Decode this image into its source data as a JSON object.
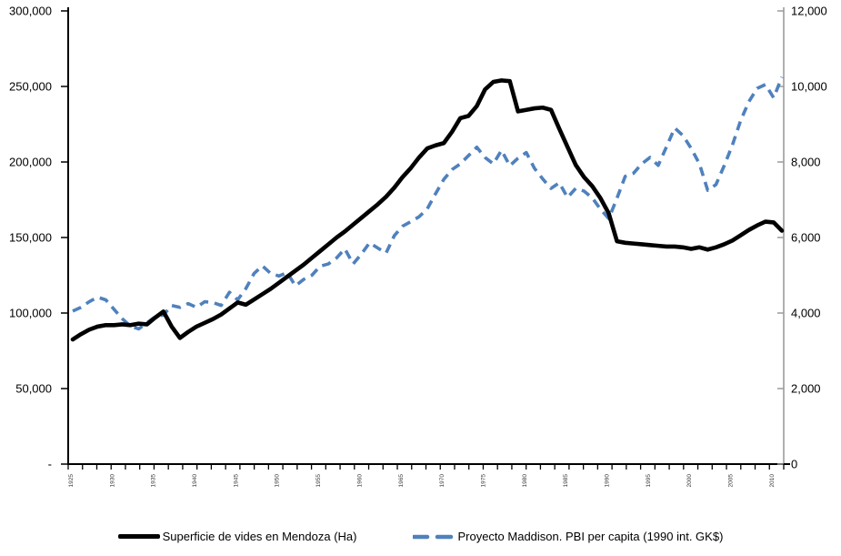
{
  "chart_data": {
    "type": "line",
    "title": "",
    "grid": false,
    "legend_position": "bottom",
    "colors": {
      "series_superficie": "#000000",
      "series_pbi": "#4f81bd",
      "right_axis_line": "#9b9b9b",
      "x_tick_label": "#3a3a3a"
    },
    "x_years": [
      1925,
      1926,
      1927,
      1928,
      1929,
      1930,
      1931,
      1932,
      1933,
      1934,
      1935,
      1936,
      1937,
      1938,
      1939,
      1940,
      1941,
      1942,
      1943,
      1944,
      1945,
      1946,
      1947,
      1948,
      1949,
      1950,
      1951,
      1952,
      1953,
      1954,
      1955,
      1956,
      1957,
      1958,
      1959,
      1960,
      1961,
      1962,
      1963,
      1964,
      1965,
      1966,
      1967,
      1968,
      1969,
      1970,
      1971,
      1972,
      1973,
      1974,
      1975,
      1976,
      1977,
      1978,
      1979,
      1980,
      1981,
      1982,
      1983,
      1984,
      1985,
      1986,
      1987,
      1988,
      1989,
      1990,
      1991,
      1992,
      1993,
      1994,
      1995,
      1996,
      1997,
      1998,
      1999,
      2000,
      2001,
      2002,
      2003,
      2004,
      2005,
      2006,
      2007,
      2008,
      2009,
      2010,
      2011
    ],
    "series": [
      {
        "name": "Superficie de vides en Mendoza (Ha)",
        "axis": "left",
        "style": "solid",
        "values": [
          82500,
          86000,
          89000,
          91000,
          92000,
          92000,
          92500,
          92000,
          93000,
          92500,
          97000,
          101000,
          91000,
          83500,
          87500,
          91000,
          93500,
          96000,
          99000,
          103000,
          107000,
          105500,
          109000,
          112500,
          116000,
          120000,
          124000,
          128000,
          132000,
          136500,
          141000,
          145500,
          150000,
          154000,
          158500,
          163000,
          167500,
          172000,
          177000,
          183000,
          190000,
          196000,
          203000,
          209000,
          211000,
          212500,
          220000,
          229000,
          230500,
          237000,
          248000,
          253000,
          254000,
          253500,
          233500,
          234500,
          235500,
          236000,
          234500,
          222000,
          210000,
          198000,
          190000,
          184000,
          176000,
          166000,
          147500,
          146500,
          146000,
          145500,
          145000,
          144500,
          144000,
          144000,
          143500,
          142500,
          143500,
          142000,
          143500,
          145500,
          148000,
          151500,
          155000,
          158000,
          160500,
          160000,
          154500
        ]
      },
      {
        "name": "Proyecto Maddison. PBI per capita (1990 int. GK$)",
        "axis": "right",
        "style": "dashed",
        "values": [
          4050,
          4150,
          4300,
          4420,
          4350,
          4100,
          3850,
          3650,
          3580,
          3740,
          3900,
          3950,
          4200,
          4150,
          4250,
          4150,
          4300,
          4280,
          4200,
          4550,
          4350,
          4650,
          5050,
          5250,
          5050,
          4980,
          5070,
          4720,
          4890,
          5000,
          5240,
          5300,
          5460,
          5700,
          5300,
          5560,
          5860,
          5720,
          5590,
          6050,
          6300,
          6420,
          6550,
          6760,
          7160,
          7540,
          7800,
          7950,
          8170,
          8390,
          8120,
          7950,
          8310,
          7900,
          8100,
          8250,
          7830,
          7550,
          7300,
          7450,
          7060,
          7300,
          7230,
          7050,
          6750,
          6500,
          7040,
          7620,
          7700,
          7950,
          8120,
          7910,
          8400,
          8900,
          8700,
          8360,
          7950,
          7250,
          7400,
          7900,
          8450,
          9100,
          9600,
          9950,
          10050,
          9700,
          10250
        ]
      }
    ],
    "left_axis": {
      "min": 0,
      "max": 300000,
      "tick_interval": 50000,
      "tick_labels_top_to_bottom": [
        "300,000",
        "250,000",
        "200,000",
        "150,000",
        "100,000",
        "50,000",
        "-"
      ]
    },
    "right_axis": {
      "min": 0,
      "max": 12000,
      "tick_interval": 2000,
      "tick_labels_top_to_bottom": [
        "12,000",
        "10,000",
        "8,000",
        "6,000",
        "4,000",
        "2,000",
        "0"
      ]
    },
    "x_axis": {
      "minor_tick_count": 51,
      "tick_labels": [
        "1925",
        "1930",
        "1935",
        "1940",
        "1945",
        "1950",
        "1955",
        "1960",
        "1965",
        "1970",
        "1975",
        "1980",
        "1985",
        "1990",
        "1995",
        "2000",
        "2005",
        "2010"
      ]
    },
    "legend": {
      "items": [
        "Superficie de vides en Mendoza (Ha)",
        "Proyecto Maddison. PBI per capita (1990 int. GK$)"
      ]
    }
  }
}
